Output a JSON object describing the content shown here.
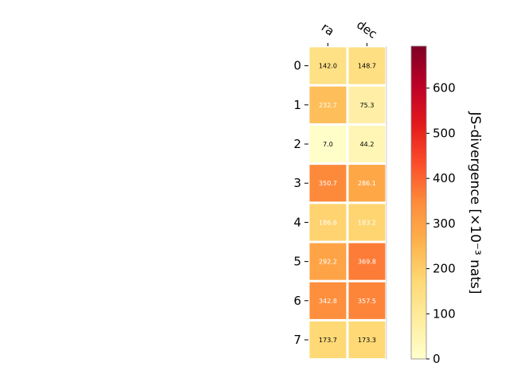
{
  "chart_data": {
    "type": "heatmap",
    "columns": [
      "ra",
      "dec"
    ],
    "rows": [
      "0",
      "1",
      "2",
      "3",
      "4",
      "5",
      "6",
      "7"
    ],
    "values": [
      [
        142.0,
        148.7
      ],
      [
        232.7,
        75.3
      ],
      [
        7.0,
        44.2
      ],
      [
        350.7,
        286.1
      ],
      [
        186.6,
        183.2
      ],
      [
        292.2,
        369.8
      ],
      [
        342.8,
        357.5
      ],
      [
        173.7,
        173.3
      ]
    ],
    "cell_labels": [
      [
        "142.0",
        "148.7"
      ],
      [
        "232.7",
        "75.3"
      ],
      [
        "7.0",
        "44.2"
      ],
      [
        "350.7",
        "286.1"
      ],
      [
        "186.6",
        "183.2"
      ],
      [
        "292.2",
        "369.8"
      ],
      [
        "342.8",
        "357.5"
      ],
      [
        "173.7",
        "173.3"
      ]
    ],
    "colormap": "YlOrRd",
    "colorbar": {
      "label": "JS-divergence [×10⁻³ nats]",
      "range": [
        0,
        693
      ],
      "ticks": [
        0,
        100,
        200,
        300,
        400,
        500,
        600
      ],
      "tick_labels": [
        "0",
        "100",
        "200",
        "300",
        "400",
        "500",
        "600"
      ]
    },
    "text_color_threshold": 180,
    "colors": {
      "cell_text_dark": "#000000",
      "cell_text_light": "#ffffff",
      "cell_gap": "#ffffff"
    }
  }
}
